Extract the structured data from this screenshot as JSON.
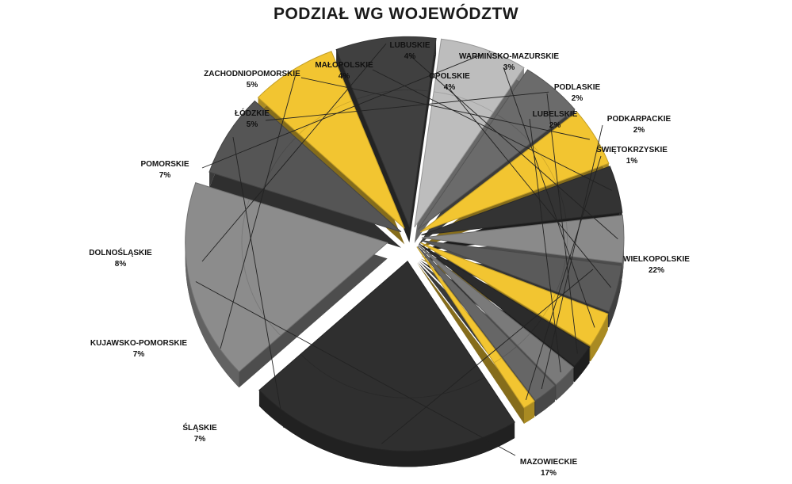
{
  "chart_data": {
    "type": "pie",
    "title": "PODZIAŁ WG WOJEWÓDZTW",
    "slices": [
      {
        "name": "WIELKOPOLSKIE",
        "value": 22,
        "label": "22%",
        "color": "#2f2f2f"
      },
      {
        "name": "MAZOWIECKIE",
        "value": 17,
        "label": "17%",
        "color": "#8c8c8c"
      },
      {
        "name": "ŚLĄSKIE",
        "value": 7,
        "label": "7%",
        "color": "#555555"
      },
      {
        "name": "KUJAWSKO-POMORSKIE",
        "value": 7,
        "label": "7%",
        "color": "#f2c531"
      },
      {
        "name": "DOLNOŚLĄSKIE",
        "value": 8,
        "label": "8%",
        "color": "#404040"
      },
      {
        "name": "POMORSKIE",
        "value": 7,
        "label": "7%",
        "color": "#bdbdbd"
      },
      {
        "name": "ŁÓDZKIE",
        "value": 5,
        "label": "5%",
        "color": "#6b6b6b"
      },
      {
        "name": "ZACHODNIOPOMORSKIE",
        "value": 5,
        "label": "5%",
        "color": "#f2c531"
      },
      {
        "name": "MAŁOPOLSKIE",
        "value": 4,
        "label": "4%",
        "color": "#333333"
      },
      {
        "name": "LUBUSKIE",
        "value": 4,
        "label": "4%",
        "color": "#8a8a8a"
      },
      {
        "name": "OPOLSKIE",
        "value": 4,
        "label": "4%",
        "color": "#5a5a5a"
      },
      {
        "name": "WARMIŃSKO-MAZURSKIE",
        "value": 3,
        "label": "3%",
        "color": "#f2c531"
      },
      {
        "name": "PODLASKIE",
        "value": 2,
        "label": "2%",
        "color": "#2b2b2b"
      },
      {
        "name": "LUBELSKIE",
        "value": 2,
        "label": "2%",
        "color": "#7a7a7a"
      },
      {
        "name": "PODKARPACKIE",
        "value": 2,
        "label": "2%",
        "color": "#666666"
      },
      {
        "name": "ŚWIĘTOKRZYSKIE",
        "value": 1,
        "label": "1%",
        "color": "#f2c531"
      }
    ]
  }
}
